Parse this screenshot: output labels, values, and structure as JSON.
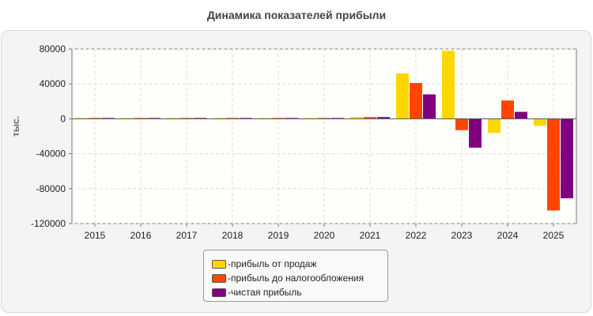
{
  "chart_data": {
    "type": "bar",
    "title": "Динамика показателей прибыли",
    "ylabel": "тыс.",
    "xlabel": "",
    "categories": [
      "2015",
      "2016",
      "2017",
      "2018",
      "2019",
      "2020",
      "2021",
      "2022",
      "2023",
      "2024",
      "2025"
    ],
    "series": [
      {
        "name": "прибыль от продаж",
        "color": "#ffd700",
        "values": [
          1000,
          1000,
          1000,
          1000,
          1000,
          1000,
          2000,
          52000,
          78000,
          -16000,
          -8000
        ]
      },
      {
        "name": "прибыль до налогообложения",
        "color": "#ff4500",
        "values": [
          1000,
          1000,
          1000,
          1000,
          1000,
          1000,
          2000,
          41000,
          -13000,
          21000,
          -105000
        ]
      },
      {
        "name": "чистая прибыль",
        "color": "#800080",
        "values": [
          1000,
          1000,
          1000,
          1000,
          1000,
          1000,
          2000,
          28000,
          -33000,
          8000,
          -91000
        ]
      }
    ],
    "ylim": [
      -120000,
      80000
    ],
    "yticks": [
      "80000",
      "40000",
      "0",
      "-40000",
      "-80000",
      "-120000"
    ],
    "grid": true,
    "legend_position": "bottom-center"
  }
}
